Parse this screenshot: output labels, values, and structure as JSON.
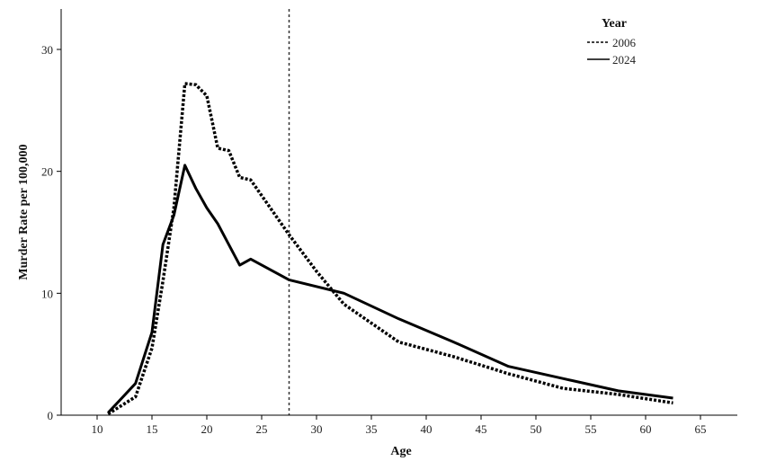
{
  "chart_data": {
    "type": "line",
    "xlabel": "Age",
    "ylabel": "Murder Rate per 100,000",
    "xlim": [
      4.5,
      68.5
    ],
    "ylim": [
      0,
      33
    ],
    "x_ticks": [
      10,
      15,
      20,
      25,
      30,
      35,
      40,
      45,
      50,
      55,
      60,
      65
    ],
    "y_ticks": [
      0,
      10,
      20,
      30
    ],
    "grid": false,
    "legend": {
      "title": "Year",
      "placement": "top-right"
    },
    "reference_line": {
      "axis": "x",
      "value": 27.5,
      "style": "dotted"
    },
    "series": [
      {
        "name": "2006",
        "style": "dotted",
        "points": [
          [
            11,
            0.1
          ],
          [
            13.5,
            1.5
          ],
          [
            15,
            5.5
          ],
          [
            16,
            11
          ],
          [
            17,
            17
          ],
          [
            18,
            27.2
          ],
          [
            19,
            27.1
          ],
          [
            20,
            26.2
          ],
          [
            21,
            21.9
          ],
          [
            22,
            21.7
          ],
          [
            23,
            19.5
          ],
          [
            24,
            19.3
          ],
          [
            27.5,
            14.8
          ],
          [
            30,
            11.8
          ],
          [
            32.5,
            9.1
          ],
          [
            37.5,
            6.0
          ],
          [
            42.5,
            4.8
          ],
          [
            47.5,
            3.4
          ],
          [
            52.5,
            2.2
          ],
          [
            57.5,
            1.7
          ],
          [
            62.5,
            1.0
          ]
        ]
      },
      {
        "name": "2024",
        "style": "solid",
        "points": [
          [
            11,
            0.2
          ],
          [
            13.5,
            2.6
          ],
          [
            15,
            6.8
          ],
          [
            16,
            14
          ],
          [
            17,
            16.4
          ],
          [
            18,
            20.5
          ],
          [
            19,
            18.6
          ],
          [
            20,
            17
          ],
          [
            21,
            15.7
          ],
          [
            22,
            14
          ],
          [
            23,
            12.3
          ],
          [
            24,
            12.8
          ],
          [
            27.5,
            11.1
          ],
          [
            32.5,
            10
          ],
          [
            37.5,
            7.9
          ],
          [
            42.5,
            6.0
          ],
          [
            47.5,
            4.0
          ],
          [
            52.5,
            3.0
          ],
          [
            57.5,
            2.0
          ],
          [
            62.5,
            1.4
          ]
        ]
      }
    ]
  }
}
